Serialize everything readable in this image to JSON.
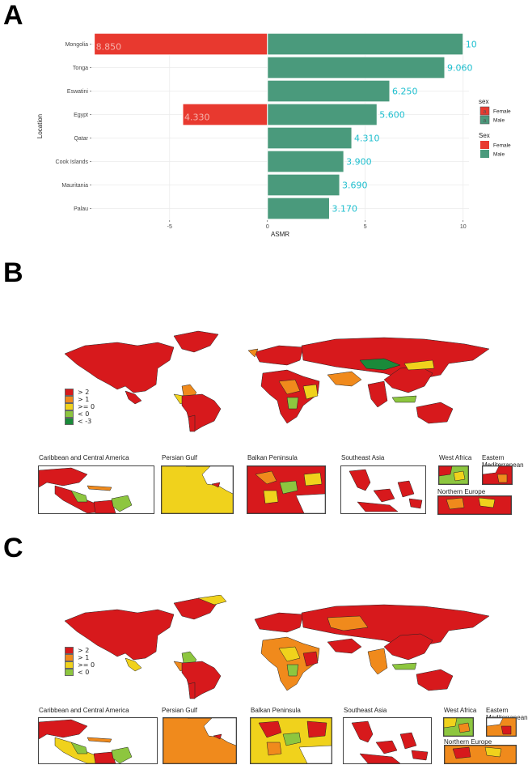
{
  "panels": {
    "a": "A",
    "b": "B",
    "c": "C"
  },
  "chart_data": {
    "type": "bar",
    "orientation": "horizontal",
    "categories": [
      "Mongolia",
      "Tonga",
      "Eswatini",
      "Egypt",
      "Qatar",
      "Cook Islands",
      "Mauritania",
      "Palau"
    ],
    "series": [
      {
        "name": "Female",
        "values": [
          -8.85,
          null,
          null,
          -4.33,
          null,
          null,
          null,
          null
        ],
        "color": "#e8392f",
        "labels": [
          "8.850",
          "",
          "",
          "4.330",
          "",
          "",
          "",
          ""
        ]
      },
      {
        "name": "Male",
        "values": [
          10,
          9.06,
          6.25,
          5.6,
          4.31,
          3.9,
          3.69,
          3.17
        ],
        "color": "#4a9a7c",
        "labels": [
          "10",
          "9.060",
          "6.250",
          "5.600",
          "4.310",
          "3.900",
          "3.690",
          "3.170"
        ]
      }
    ],
    "xlabel": "ASMR",
    "ylabel": "Location",
    "xlim": [
      -9,
      10.3
    ],
    "xticks": [
      -5,
      0,
      5,
      10
    ],
    "grid": true,
    "legend": [
      {
        "title": "sex",
        "entries": [
          "Female",
          "Male"
        ],
        "colors": [
          "#e8392f",
          "#4a9a7c"
        ],
        "style": "label-swatch"
      },
      {
        "title": "Sex",
        "entries": [
          "Female",
          "Male"
        ],
        "colors": [
          "#e8392f",
          "#4a9a7c"
        ],
        "style": "fill"
      }
    ],
    "legend_position": "right"
  },
  "maps": {
    "b": {
      "legend": [
        {
          "label": "> 2",
          "color": "#d7191c"
        },
        {
          "label": "> 1",
          "color": "#f08a1c"
        },
        {
          "label": ">= 0",
          "color": "#f0d21c"
        },
        {
          "label": "< 0",
          "color": "#8dc63f"
        },
        {
          "label": "< -3",
          "color": "#1a8a3a"
        }
      ],
      "insets": [
        "Caribbean and Central America",
        "Persian Gulf",
        "Balkan Peninsula",
        "Southeast Asia",
        "West Africa",
        "Eastern Mediterranean",
        "Northern Europe"
      ]
    },
    "c": {
      "legend": [
        {
          "label": "> 2",
          "color": "#d7191c"
        },
        {
          "label": "> 1",
          "color": "#f08a1c"
        },
        {
          "label": ">= 0",
          "color": "#f0d21c"
        },
        {
          "label": "< 0",
          "color": "#8dc63f"
        }
      ],
      "insets": [
        "Caribbean and Central America",
        "Persian Gulf",
        "Balkan Peninsula",
        "Southeast Asia",
        "West Africa",
        "Eastern Mediterranean",
        "Northern Europe"
      ]
    }
  }
}
